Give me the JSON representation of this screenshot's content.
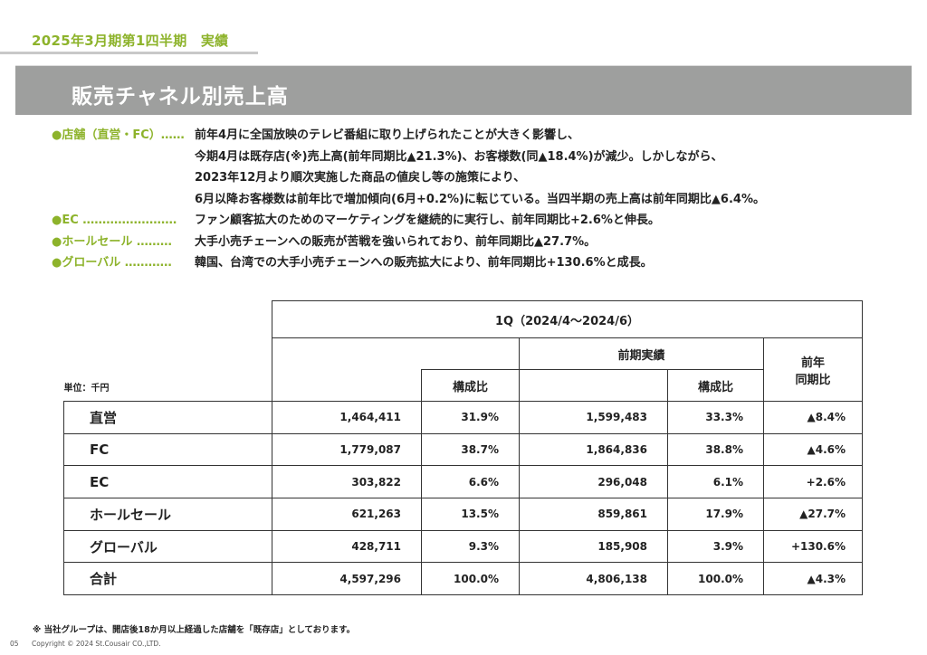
{
  "header": {
    "period": "2025年3月期第1四半期　実績",
    "title": "販売チャネル別売上高"
  },
  "bullets": [
    {
      "label": "●店舗（直営・FC）",
      "dots": "……",
      "lines": [
        "前年4月に全国放映のテレビ番組に取り上げられたことが大きく影響し、",
        "今期4月は既存店(※)売上高(前年同期比▲21.3%)、お客様数(同▲18.4%)が減少。しかしながら、",
        "2023年12月より順次実施した商品の値戻し等の施策により、",
        "6月以降お客様数は前年比で増加傾向(6月+0.2%)に転じている。当四半期の売上高は前年同期比▲6.4%。"
      ]
    },
    {
      "label": "●EC",
      "dots": "……………………",
      "lines": [
        "ファン顧客拡大のためのマーケティングを継続的に実行し、前年同期比+2.6%と伸長。"
      ]
    },
    {
      "label": "●ホールセール",
      "dots": "………",
      "lines": [
        "大手小売チェーンへの販売が苦戦を強いられており、前年同期比▲27.7%。"
      ]
    },
    {
      "label": "●グローバル",
      "dots": "…………",
      "lines": [
        "韓国、台湾での大手小売チェーンへの販売拡大により、前年同期比+130.6%と成長。"
      ]
    }
  ],
  "table": {
    "unit": "単位：千円",
    "period_header": "1Q（2024/4～2024/6）",
    "prior_header": "前期実績",
    "yoy_header_1": "前年",
    "yoy_header_2": "同期比",
    "ratio_header": "構成比",
    "rows": [
      {
        "label": "直営",
        "value": "1,464,411",
        "ratio": "31.9%",
        "prior": "1,599,483",
        "prior_ratio": "33.3%",
        "yoy": "▲8.4%"
      },
      {
        "label": "FC",
        "value": "1,779,087",
        "ratio": "38.7%",
        "prior": "1,864,836",
        "prior_ratio": "38.8%",
        "yoy": "▲4.6%"
      },
      {
        "label": "EC",
        "value": "303,822",
        "ratio": "6.6%",
        "prior": "296,048",
        "prior_ratio": "6.1%",
        "yoy": "+2.6%"
      },
      {
        "label": "ホールセール",
        "value": "621,263",
        "ratio": "13.5%",
        "prior": "859,861",
        "prior_ratio": "17.9%",
        "yoy": "▲27.7%"
      },
      {
        "label": "グローバル",
        "value": "428,711",
        "ratio": "9.3%",
        "prior": "185,908",
        "prior_ratio": "3.9%",
        "yoy": "+130.6%"
      },
      {
        "label": "合計",
        "value": "4,597,296",
        "ratio": "100.0%",
        "prior": "4,806,138",
        "prior_ratio": "100.0%",
        "yoy": "▲4.3%"
      }
    ]
  },
  "footer": {
    "note": "※ 当社グループは、開店後18か月以上経過した店舗を「既存店」としております。",
    "page": "05",
    "copyright": "Copyright © 2024 St.Cousair CO.,LTD."
  }
}
